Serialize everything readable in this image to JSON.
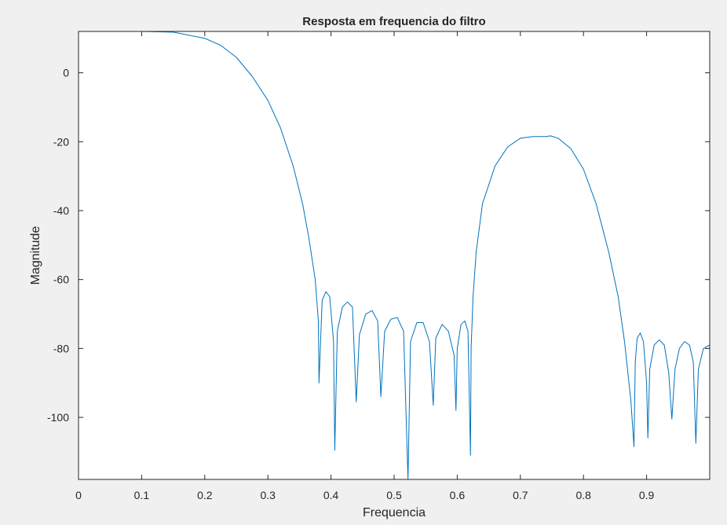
{
  "chart_data": {
    "type": "line",
    "title": "Resposta em frequencia do filtro",
    "xlabel": "Frequencia",
    "ylabel": "Magnitude",
    "xlim": [
      0,
      1
    ],
    "ylim": [
      -118,
      12
    ],
    "xticks": [
      0,
      0.1,
      0.2,
      0.3,
      0.4,
      0.5,
      0.6,
      0.7,
      0.8,
      0.9
    ],
    "xtick_labels": [
      "0",
      "0.1",
      "0.2",
      "0.3",
      "0.4",
      "0.5",
      "0.6",
      "0.7",
      "0.8",
      "0.9"
    ],
    "yticks": [
      0,
      -20,
      -40,
      -60,
      -80,
      -100
    ],
    "ytick_labels": [
      "0",
      "-20",
      "-40",
      "-60",
      "-80",
      "-100"
    ],
    "grid": false,
    "line_color": "#0072BD",
    "series": [
      {
        "x": [
          0,
          0.05,
          0.1,
          0.15,
          0.2,
          0.225,
          0.25,
          0.275,
          0.3,
          0.32,
          0.34,
          0.355,
          0.365,
          0.375,
          0.38,
          0.381,
          0.386,
          0.392,
          0.398,
          0.404,
          0.406,
          0.41,
          0.418,
          0.426,
          0.434,
          0.44,
          0.445,
          0.455,
          0.465,
          0.474,
          0.479,
          0.485,
          0.495,
          0.505,
          0.515,
          0.522,
          0.526,
          0.536,
          0.546,
          0.556,
          0.562,
          0.566,
          0.576,
          0.586,
          0.595,
          0.598,
          0.6,
          0.606,
          0.612,
          0.617,
          0.621,
          0.622,
          0.625,
          0.63,
          0.64,
          0.66,
          0.68,
          0.7,
          0.72,
          0.74,
          0.748,
          0.76,
          0.78,
          0.8,
          0.82,
          0.84,
          0.855,
          0.865,
          0.875,
          0.88,
          0.882,
          0.885,
          0.89,
          0.895,
          0.9,
          0.902,
          0.905,
          0.912,
          0.92,
          0.928,
          0.935,
          0.94,
          0.945,
          0.952,
          0.96,
          0.968,
          0.974,
          0.978,
          0.982,
          0.99,
          1.0
        ],
        "y": [
          12,
          12,
          12,
          11.8,
          10,
          8,
          4.5,
          -1,
          -8,
          -16,
          -27,
          -38,
          -48,
          -60,
          -72,
          -90,
          -66,
          -63.5,
          -65,
          -78,
          -109.5,
          -75,
          -68,
          -66.5,
          -68,
          -95.5,
          -76,
          -70,
          -69,
          -72,
          -94,
          -75,
          -71.5,
          -71,
          -75,
          -118,
          -78,
          -72.5,
          -72.5,
          -78,
          -96.5,
          -77,
          -73,
          -75,
          -82,
          -98,
          -80,
          -73,
          -72,
          -75,
          -111,
          -80,
          -65,
          -52,
          -38,
          -27,
          -21.5,
          -19,
          -18.5,
          -18.5,
          -18.3,
          -19,
          -22,
          -28,
          -38,
          -52,
          -65,
          -78,
          -95,
          -108.5,
          -84,
          -77,
          -75.5,
          -78,
          -90,
          -106,
          -86,
          -79,
          -77.5,
          -79,
          -87,
          -100.5,
          -86,
          -80,
          -78,
          -79,
          -84,
          -107.5,
          -86,
          -80,
          -79
        ]
      }
    ]
  }
}
